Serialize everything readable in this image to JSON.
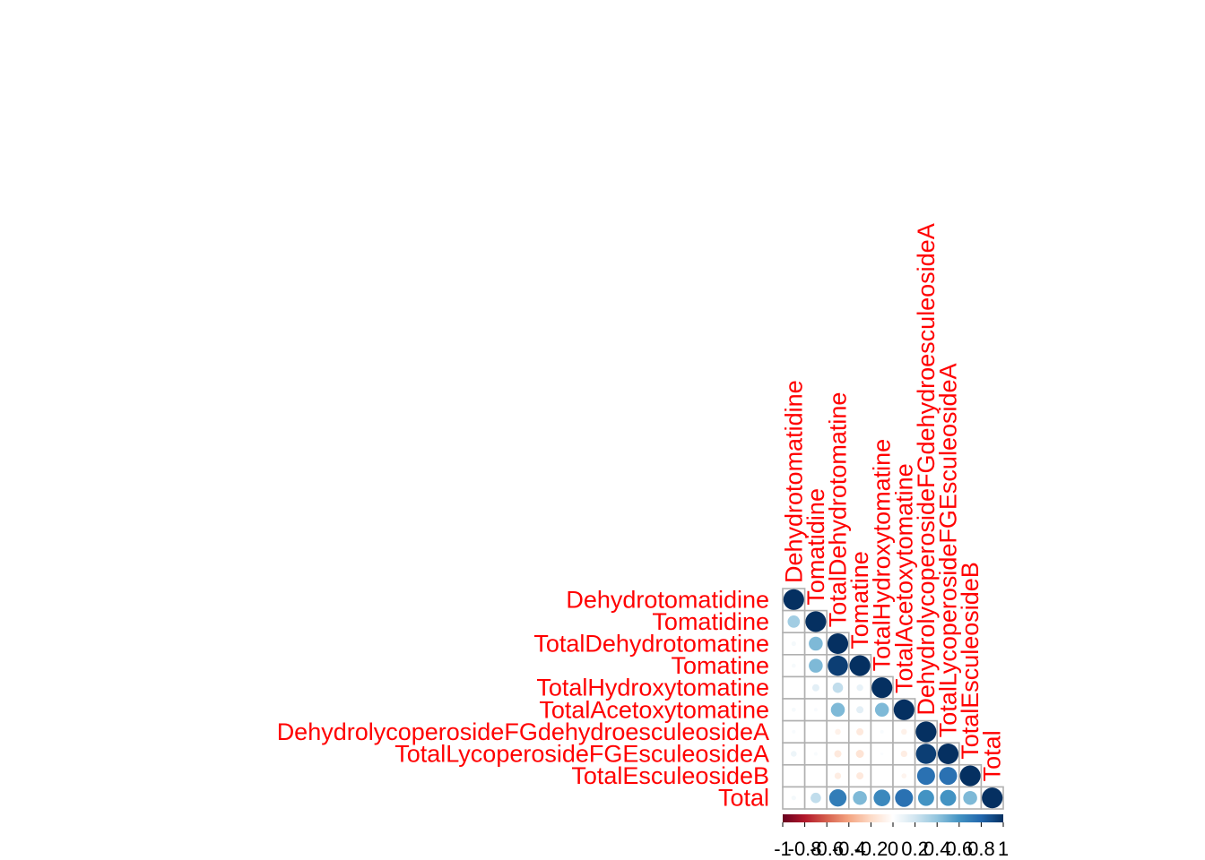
{
  "chart_data": {
    "type": "heatmap",
    "subtype": "correlation-circle-lower-triangle",
    "variables": [
      "Dehydrotomatidine",
      "Tomatidine",
      "TotalDehydrotomatine",
      "Tomatine",
      "TotalHydroxytomatine",
      "TotalAcetoxytomatine",
      "DehydrolycoperosideFGdehydroesculeosideA",
      "TotalLycoperosideFGEsculeosideA",
      "TotalEsculeosideB",
      "Total"
    ],
    "matrix": [
      [
        1.0,
        null,
        null,
        null,
        null,
        null,
        null,
        null,
        null,
        null
      ],
      [
        0.35,
        1.0,
        null,
        null,
        null,
        null,
        null,
        null,
        null,
        null
      ],
      [
        0.05,
        0.45,
        1.0,
        null,
        null,
        null,
        null,
        null,
        null,
        null
      ],
      [
        0.04,
        0.45,
        0.95,
        1.0,
        null,
        null,
        null,
        null,
        null,
        null
      ],
      [
        0.0,
        0.12,
        0.25,
        0.1,
        1.0,
        null,
        null,
        null,
        null,
        null
      ],
      [
        0.04,
        0.03,
        0.45,
        0.12,
        0.45,
        1.0,
        null,
        null,
        null,
        null
      ],
      [
        0.03,
        0.0,
        -0.08,
        -0.12,
        0.03,
        -0.08,
        1.0,
        null,
        null,
        null
      ],
      [
        0.08,
        0.03,
        -0.12,
        -0.15,
        0.02,
        -0.1,
        0.95,
        1.0,
        null,
        null
      ],
      [
        0.0,
        0.0,
        -0.1,
        -0.12,
        0.0,
        -0.06,
        0.75,
        0.75,
        1.0,
        null
      ],
      [
        0.05,
        0.25,
        0.7,
        0.45,
        0.65,
        0.75,
        0.6,
        0.6,
        0.45,
        1.0
      ]
    ],
    "colorbar": {
      "range": [
        -1,
        1
      ],
      "tick_labels": [
        "-1",
        "-0.8",
        "-0.6",
        "-0.4",
        "-0.2",
        "0",
        "0.2",
        "0.4",
        "0.6",
        "0.8",
        "1"
      ],
      "colors": [
        "#67001F",
        "#B2182B",
        "#D6604D",
        "#F4A582",
        "#FDDBC7",
        "#FFFFFF",
        "#D1E5F0",
        "#92C5DE",
        "#4393C3",
        "#2166AC",
        "#053061"
      ]
    },
    "label_color": "#ff0000",
    "grid_color": "#b0b0b0"
  }
}
